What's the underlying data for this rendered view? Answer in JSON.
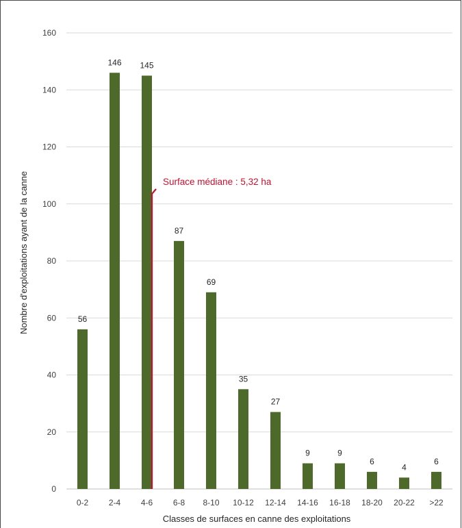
{
  "chart_data": {
    "type": "bar",
    "title": "",
    "xlabel": "Classes de surfaces en canne des exploitations",
    "ylabel": "Nombre d'exploitations ayant de la canne",
    "categories": [
      "0-2",
      "2-4",
      "4-6",
      "6-8",
      "8-10",
      "10-12",
      "12-14",
      "14-16",
      "16-18",
      "18-20",
      "20-22",
      ">22"
    ],
    "values": [
      56,
      146,
      145,
      87,
      69,
      35,
      27,
      9,
      9,
      6,
      4,
      6
    ],
    "data_labels": [
      "56",
      "146",
      "145",
      "87",
      "69",
      "35",
      "27",
      "9",
      "9",
      "6",
      "4",
      "6"
    ],
    "ylim": [
      0,
      160
    ],
    "yticks": [
      0,
      20,
      40,
      60,
      80,
      100,
      120,
      140,
      160
    ],
    "grid": true,
    "legend": "none",
    "bar_color": "#4e6a2b",
    "annotation": {
      "text": "Surface médiane : 5,32 ha",
      "x_value": 5.32,
      "color": "#c8102e"
    }
  }
}
